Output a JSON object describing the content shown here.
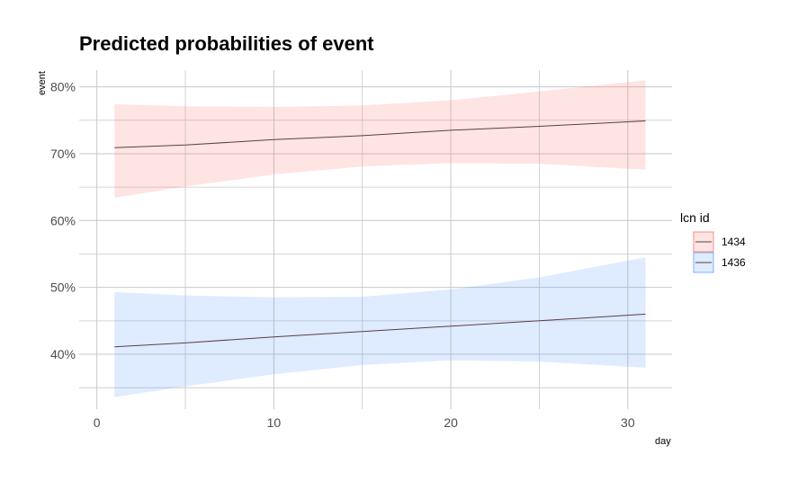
{
  "chart_data": {
    "type": "line",
    "title": "Predicted probabilities of event",
    "xlabel": "day",
    "ylabel": "event",
    "xlim": [
      -1,
      32.5
    ],
    "ylim": [
      0.318,
      0.825
    ],
    "x_ticks": [
      0,
      10,
      20,
      30
    ],
    "y_ticks": [
      0.4,
      0.5,
      0.6,
      0.7,
      0.8
    ],
    "y_tick_labels": [
      "40%",
      "50%",
      "60%",
      "70%",
      "80%"
    ],
    "grid": true,
    "legend": {
      "title": "lcn id",
      "position": "right"
    },
    "series": [
      {
        "name": "1434",
        "color": "#f8766d",
        "x": [
          1,
          5,
          10,
          15,
          20,
          25,
          31
        ],
        "y": [
          0.709,
          0.713,
          0.721,
          0.727,
          0.735,
          0.741,
          0.749
        ],
        "lower": [
          0.634,
          0.651,
          0.669,
          0.681,
          0.686,
          0.685,
          0.676
        ],
        "upper": [
          0.774,
          0.771,
          0.77,
          0.772,
          0.78,
          0.793,
          0.81
        ]
      },
      {
        "name": "1436",
        "color": "#619cff",
        "x": [
          1,
          5,
          10,
          15,
          20,
          25,
          31
        ],
        "y": [
          0.411,
          0.417,
          0.426,
          0.434,
          0.442,
          0.45,
          0.46
        ],
        "lower": [
          0.336,
          0.352,
          0.37,
          0.384,
          0.391,
          0.389,
          0.38
        ],
        "upper": [
          0.493,
          0.488,
          0.485,
          0.486,
          0.497,
          0.515,
          0.545
        ]
      }
    ]
  }
}
